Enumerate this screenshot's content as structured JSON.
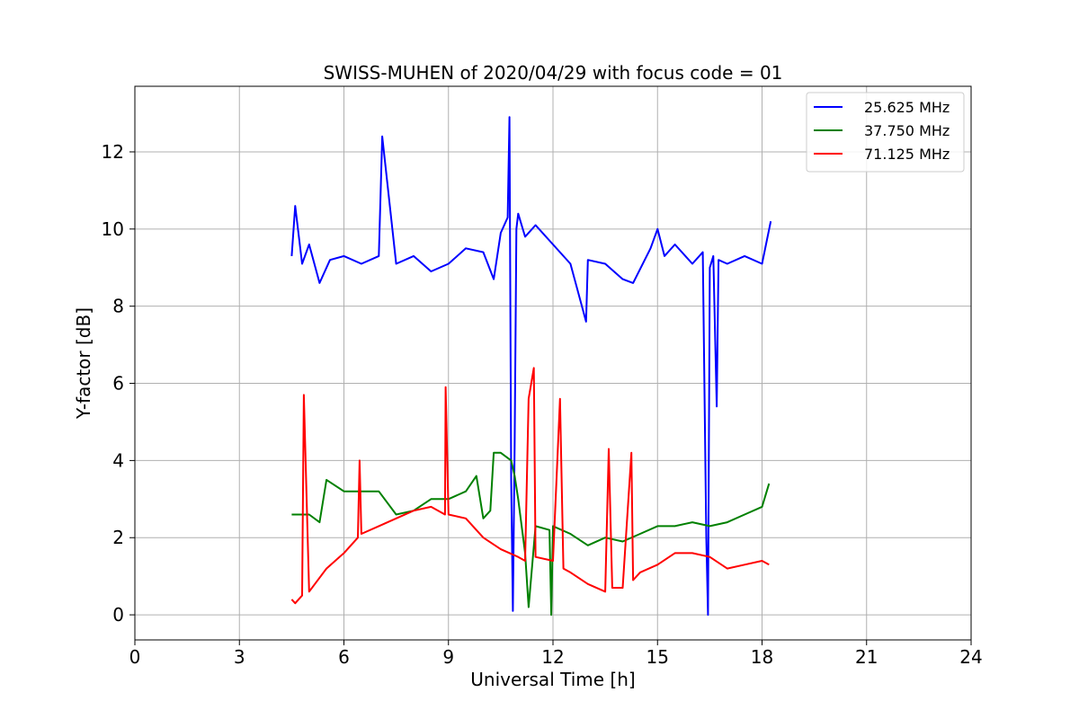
{
  "chart_data": {
    "type": "line",
    "title": "SWISS-MUHEN of 2020/04/29 with focus code = 01",
    "xlabel": "Universal Time [h]",
    "ylabel": "Y-factor [dB]",
    "xlim": [
      0,
      24
    ],
    "ylim": [
      -0.65,
      13.7
    ],
    "xticks": [
      0,
      3,
      6,
      9,
      12,
      15,
      18,
      21,
      24
    ],
    "yticks": [
      0,
      2,
      4,
      6,
      8,
      10,
      12
    ],
    "grid": true,
    "legend_position": "top-right",
    "series": [
      {
        "name": "25.625 MHz",
        "color": "#0000ff",
        "x": [
          4.5,
          4.6,
          4.8,
          5.0,
          5.3,
          5.6,
          6.0,
          6.5,
          7.0,
          7.1,
          7.5,
          8.0,
          8.5,
          9.0,
          9.5,
          10.0,
          10.3,
          10.5,
          10.7,
          10.75,
          10.8,
          10.85,
          10.9,
          10.95,
          11.0,
          11.2,
          11.5,
          12.0,
          12.5,
          12.95,
          13.0,
          13.5,
          14.0,
          14.3,
          14.8,
          15.0,
          15.2,
          15.5,
          16.0,
          16.3,
          16.4,
          16.45,
          16.5,
          16.6,
          16.7,
          16.75,
          17.0,
          17.5,
          18.0,
          18.25
        ],
        "y": [
          9.3,
          10.6,
          9.1,
          9.6,
          8.6,
          9.2,
          9.3,
          9.1,
          9.3,
          12.4,
          9.1,
          9.3,
          8.9,
          9.1,
          9.5,
          9.4,
          8.7,
          9.9,
          10.3,
          12.9,
          3.5,
          0.1,
          4.5,
          10.0,
          10.4,
          9.8,
          10.1,
          9.6,
          9.1,
          7.6,
          9.2,
          9.1,
          8.7,
          8.6,
          9.5,
          10.0,
          9.3,
          9.6,
          9.1,
          9.4,
          2.0,
          0.0,
          9.0,
          9.3,
          5.4,
          9.2,
          9.1,
          9.3,
          9.1,
          10.2
        ]
      },
      {
        "name": "37.750 MHz",
        "color": "#008000",
        "x": [
          4.5,
          5.0,
          5.3,
          5.5,
          6.0,
          6.5,
          7.0,
          7.5,
          8.0,
          8.5,
          9.0,
          9.5,
          9.8,
          10.0,
          10.2,
          10.3,
          10.5,
          10.8,
          10.9,
          11.0,
          11.2,
          11.3,
          11.5,
          11.9,
          11.95,
          12.0,
          12.5,
          13.0,
          13.5,
          14.0,
          14.5,
          15.0,
          15.5,
          16.0,
          16.5,
          17.0,
          17.5,
          18.0,
          18.2
        ],
        "y": [
          2.6,
          2.6,
          2.4,
          3.5,
          3.2,
          3.2,
          3.2,
          2.6,
          2.7,
          3.0,
          3.0,
          3.2,
          3.6,
          2.5,
          2.7,
          4.2,
          4.2,
          4.0,
          3.6,
          3.0,
          1.6,
          0.2,
          2.3,
          2.2,
          0.0,
          2.3,
          2.1,
          1.8,
          2.0,
          1.9,
          2.1,
          2.3,
          2.3,
          2.4,
          2.3,
          2.4,
          2.6,
          2.8,
          3.4
        ]
      },
      {
        "name": "71.125 MHz",
        "color": "#ff0000",
        "x": [
          4.5,
          4.6,
          4.8,
          4.85,
          5.0,
          5.5,
          6.0,
          6.4,
          6.45,
          6.5,
          7.0,
          7.5,
          8.0,
          8.5,
          8.9,
          8.92,
          9.0,
          9.5,
          10.0,
          10.5,
          11.0,
          11.2,
          11.3,
          11.45,
          11.5,
          12.0,
          12.2,
          12.3,
          12.5,
          13.0,
          13.5,
          13.6,
          13.7,
          14.0,
          14.25,
          14.3,
          14.5,
          15.0,
          15.5,
          16.0,
          16.5,
          17.0,
          17.5,
          18.0,
          18.2
        ],
        "y": [
          0.4,
          0.3,
          0.5,
          5.7,
          0.6,
          1.2,
          1.6,
          2.0,
          4.0,
          2.1,
          2.3,
          2.5,
          2.7,
          2.8,
          2.6,
          5.9,
          2.6,
          2.5,
          2.0,
          1.7,
          1.5,
          1.4,
          5.6,
          6.4,
          1.5,
          1.4,
          5.6,
          1.2,
          1.1,
          0.8,
          0.6,
          4.3,
          0.7,
          0.7,
          4.2,
          0.9,
          1.1,
          1.3,
          1.6,
          1.6,
          1.5,
          1.2,
          1.3,
          1.4,
          1.3
        ]
      }
    ]
  }
}
